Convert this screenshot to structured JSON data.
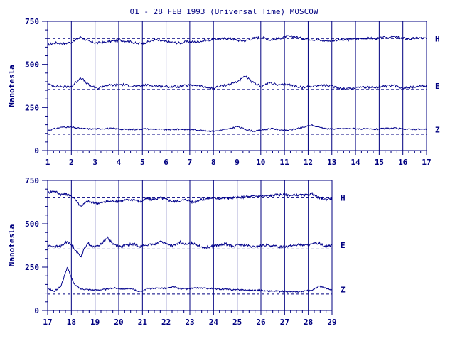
{
  "chart_data": {
    "title": "01 - 28 FEB 1993 (Universal Time) MOSCOW",
    "colors": {
      "line": "#00008b",
      "axis": "#000080"
    },
    "panels": [
      {
        "type": "line",
        "xlim": [
          1,
          17
        ],
        "ylim": [
          0,
          750
        ],
        "xticks": [
          "1",
          "2",
          "3",
          "4",
          "5",
          "6",
          "7",
          "8",
          "9",
          "10",
          "11",
          "12",
          "13",
          "14",
          "15",
          "16",
          "17"
        ],
        "yticks": [
          "0",
          "250",
          "500",
          "750"
        ],
        "ylabel": "Nanotesla",
        "grid": "vertical lines at each day",
        "series": [
          {
            "name": "H",
            "baseline": 650,
            "values": [
              615,
              625,
              620,
              630,
              660,
              632,
              624,
              628,
              636,
              640,
              632,
              620,
              628,
              642,
              634,
              628,
              624,
              632,
              630,
              638,
              644,
              648,
              652,
              640,
              636,
              652,
              658,
              642,
              650,
              662,
              660,
              650,
              646,
              640,
              636,
              642,
              640,
              646,
              650,
              652,
              650,
              656,
              660,
              652,
              648,
              654,
              650
            ]
          },
          {
            "name": "E",
            "baseline": 355,
            "values": [
              385,
              375,
              370,
              375,
              425,
              380,
              360,
              378,
              380,
              384,
              376,
              372,
              380,
              376,
              372,
              370,
              372,
              378,
              380,
              368,
              362,
              374,
              384,
              400,
              430,
              392,
              372,
              396,
              378,
              386,
              376,
              366,
              374,
              380,
              376,
              368,
              360,
              362,
              372,
              366,
              370,
              372,
              378,
              366,
              368,
              372,
              375
            ]
          },
          {
            "name": "Z",
            "baseline": 95,
            "values": [
              118,
              128,
              138,
              135,
              128,
              126,
              126,
              128,
              128,
              124,
              122,
              124,
              126,
              124,
              122,
              122,
              124,
              122,
              120,
              116,
              112,
              118,
              125,
              140,
              124,
              112,
              118,
              128,
              122,
              118,
              124,
              134,
              148,
              136,
              126,
              126,
              128,
              128,
              126,
              124,
              124,
              128,
              130,
              126,
              124,
              124,
              122
            ]
          }
        ]
      },
      {
        "type": "line",
        "xlim": [
          17,
          29
        ],
        "ylim": [
          0,
          750
        ],
        "xticks": [
          "17",
          "18",
          "19",
          "20",
          "21",
          "22",
          "23",
          "24",
          "25",
          "26",
          "27",
          "28",
          "29"
        ],
        "yticks": [
          "0",
          "250",
          "500",
          "750"
        ],
        "ylabel": "Nanotesla",
        "grid": "vertical lines at each day",
        "series": [
          {
            "name": "H",
            "baseline": 650,
            "values": [
              680,
              690,
              670,
              670,
              650,
              600,
              630,
              620,
              620,
              628,
              630,
              632,
              638,
              640,
              628,
              644,
              640,
              650,
              640,
              628,
              632,
              640,
              624,
              638,
              644,
              650,
              646,
              648,
              650,
              652,
              656,
              658,
              660,
              660,
              664,
              668,
              670,
              662,
              666,
              664,
              674,
              650,
              640,
              650
            ]
          },
          {
            "name": "E",
            "baseline": 355,
            "values": [
              375,
              370,
              370,
              400,
              360,
              310,
              390,
              365,
              380,
              420,
              382,
              368,
              378,
              384,
              370,
              378,
              380,
              400,
              384,
              372,
              394,
              380,
              390,
              370,
              364,
              372,
              378,
              384,
              370,
              380,
              376,
              366,
              372,
              378,
              372,
              368,
              370,
              374,
              380,
              376,
              382,
              390,
              370,
              378
            ]
          },
          {
            "name": "Z",
            "baseline": 95,
            "values": [
              128,
              110,
              140,
              250,
              150,
              125,
              122,
              118,
              120,
              122,
              130,
              126,
              126,
              122,
              108,
              126,
              126,
              130,
              128,
              136,
              126,
              124,
              128,
              130,
              128,
              126,
              124,
              122,
              120,
              120,
              118,
              116,
              116,
              112,
              112,
              110,
              110,
              108,
              108,
              112,
              116,
              140,
              130,
              120
            ]
          }
        ]
      }
    ]
  }
}
